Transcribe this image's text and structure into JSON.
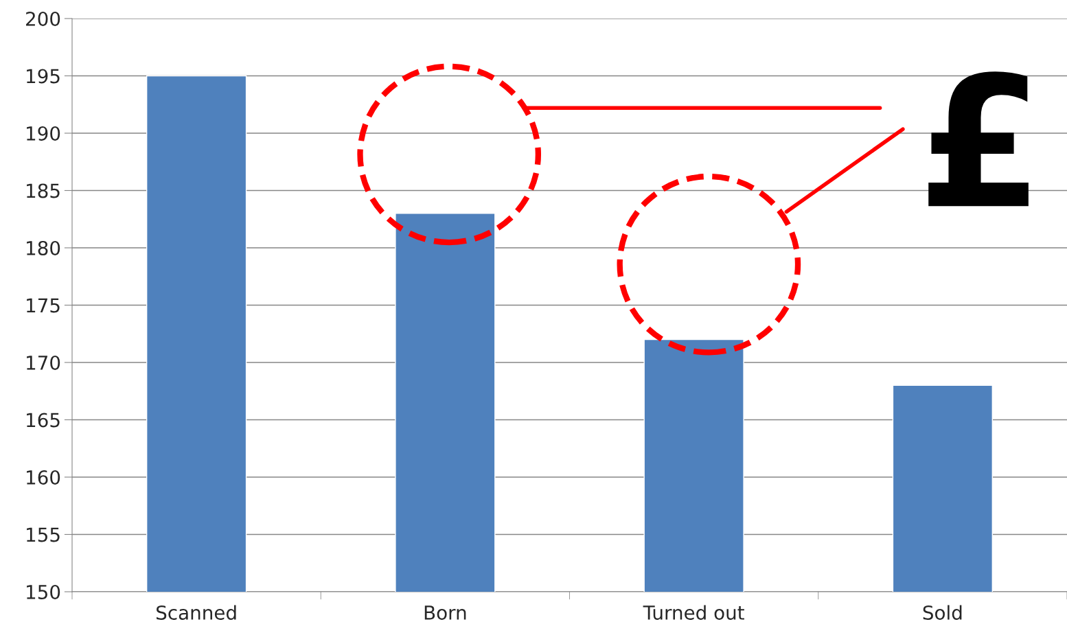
{
  "chart_data": {
    "type": "bar",
    "categories": [
      "Scanned",
      "Born",
      "Turned out",
      "Sold"
    ],
    "values": [
      195,
      183,
      172,
      168
    ],
    "color": "#4f81bd",
    "ylim": [
      150,
      200
    ],
    "yticks": [
      150,
      155,
      160,
      165,
      170,
      175,
      180,
      185,
      190,
      195,
      200
    ],
    "grid": "y",
    "legend": false,
    "annotations": [
      "£"
    ]
  }
}
